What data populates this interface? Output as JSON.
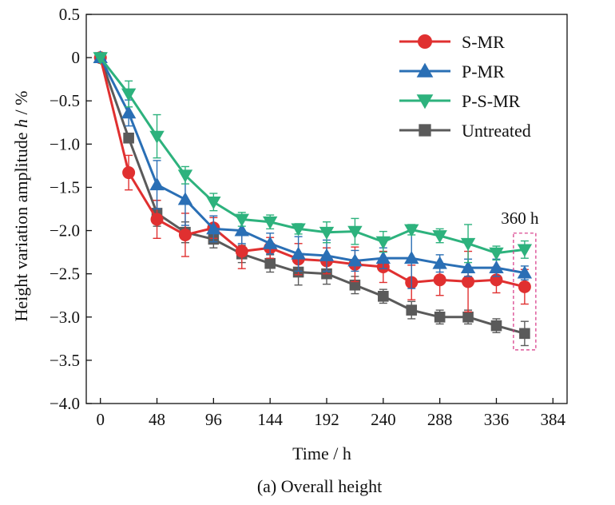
{
  "caption": "(a) Overall height",
  "chart_data": {
    "type": "line",
    "title": "",
    "xlabel": "Time / h",
    "ylabel_prefix": "Height variation amplitude ",
    "ylabel_var": "h",
    "ylabel_suffix": " / %",
    "xlim": [
      -12,
      396
    ],
    "ylim": [
      -4.0,
      0.5
    ],
    "xticks": [
      0,
      48,
      96,
      144,
      192,
      240,
      288,
      336,
      384
    ],
    "yticks": [
      0.5,
      0,
      -0.5,
      -1.0,
      -1.5,
      -2.0,
      -2.5,
      -3.0,
      -3.5,
      -4.0
    ],
    "ytick_labels": [
      "0.5",
      "0",
      "−0.5",
      "−1.0",
      "−1.5",
      "−2.0",
      "−2.5",
      "−3.0",
      "−3.5",
      "−4.0"
    ],
    "grid": false,
    "legend_position": "top-right",
    "x": [
      0,
      24,
      48,
      72,
      96,
      120,
      144,
      168,
      192,
      216,
      240,
      264,
      288,
      312,
      336,
      360
    ],
    "series": [
      {
        "name": "S-MR",
        "color": "#e03030",
        "marker": "circle",
        "values": [
          0,
          -1.33,
          -1.87,
          -2.05,
          -1.97,
          -2.24,
          -2.2,
          -2.33,
          -2.35,
          -2.39,
          -2.42,
          -2.6,
          -2.57,
          -2.59,
          -2.57,
          -2.65
        ],
        "errors": [
          0,
          0.2,
          0.22,
          0.25,
          0.12,
          0.2,
          0.12,
          0.18,
          0.15,
          0.2,
          0.18,
          0.2,
          0.18,
          0.35,
          0.15,
          0.2
        ]
      },
      {
        "name": "P-MR",
        "color": "#2a6fb5",
        "marker": "triangle-up",
        "values": [
          0,
          -0.64,
          -1.47,
          -1.64,
          -1.98,
          -2.0,
          -2.15,
          -2.27,
          -2.29,
          -2.35,
          -2.32,
          -2.32,
          -2.38,
          -2.43,
          -2.43,
          -2.49
        ],
        "errors": [
          0,
          0.15,
          0.28,
          0.3,
          0.15,
          0.15,
          0.12,
          0.2,
          0.18,
          0.12,
          0.12,
          0.35,
          0.1,
          0.1,
          0.1,
          0.08
        ]
      },
      {
        "name": "P-S-MR",
        "color": "#2db27d",
        "marker": "triangle-down",
        "values": [
          0,
          -0.42,
          -0.91,
          -1.36,
          -1.67,
          -1.87,
          -1.9,
          -1.98,
          -2.02,
          -2.01,
          -2.13,
          -1.99,
          -2.06,
          -2.15,
          -2.26,
          -2.22
        ],
        "errors": [
          0,
          0.15,
          0.25,
          0.1,
          0.1,
          0.08,
          0.08,
          0.06,
          0.12,
          0.15,
          0.12,
          0.06,
          0.08,
          0.22,
          0.08,
          0.1
        ]
      },
      {
        "name": "Untreated",
        "color": "#5a5a5a",
        "marker": "square",
        "values": [
          0,
          -0.93,
          -1.8,
          -2.02,
          -2.1,
          -2.27,
          -2.38,
          -2.48,
          -2.5,
          -2.63,
          -2.76,
          -2.92,
          -3.0,
          -3.0,
          -3.1,
          -3.19
        ],
        "errors": [
          0,
          0.05,
          0.15,
          0.12,
          0.1,
          0.1,
          0.1,
          0.15,
          0.12,
          0.1,
          0.08,
          0.1,
          0.08,
          0.08,
          0.08,
          0.14
        ]
      }
    ],
    "annotation": {
      "label": "360 h",
      "x": 360,
      "y_top": -2.03,
      "y_bottom": -3.38,
      "color": "#d63384"
    }
  }
}
